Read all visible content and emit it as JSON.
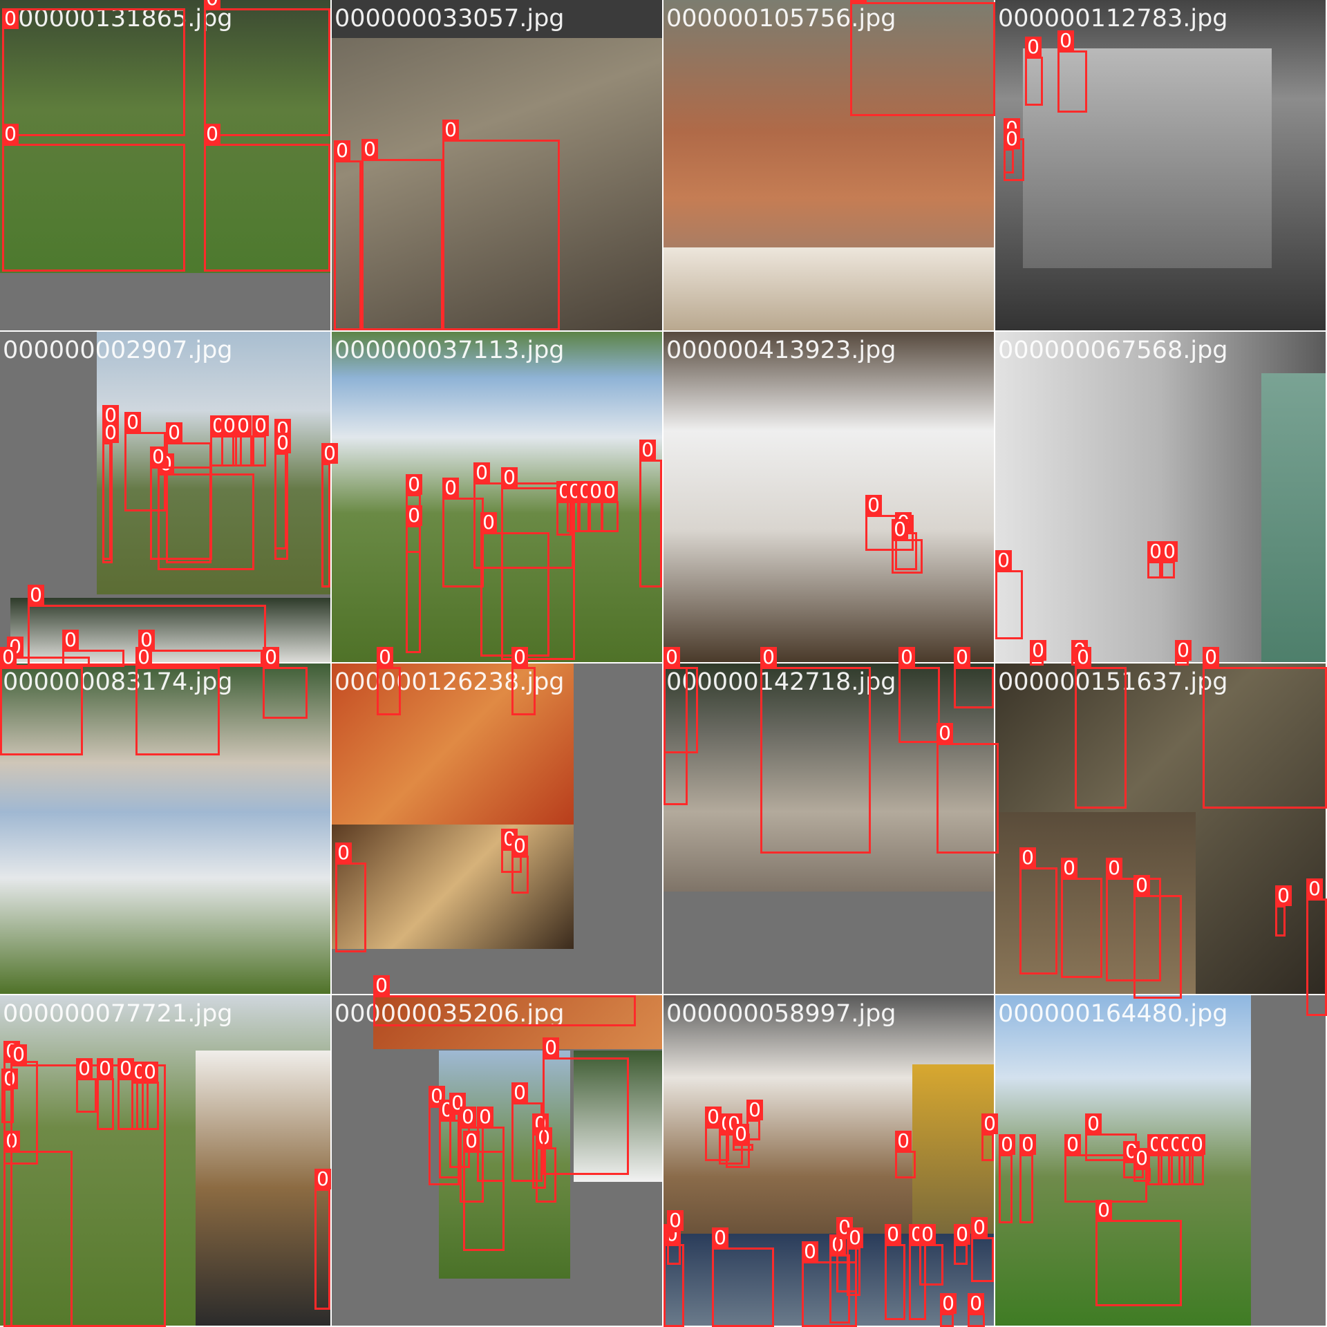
{
  "title": "",
  "label_color": "#ff2a2a",
  "tiles": [
    {
      "filename": "000000131865.jpg"
    },
    {
      "filename": "000000033057.jpg"
    },
    {
      "filename": "000000105756.jpg"
    },
    {
      "filename": "000000112783.jpg"
    },
    {
      "filename": "000000002907.jpg"
    },
    {
      "filename": "000000037113.jpg"
    },
    {
      "filename": "000000413923.jpg"
    },
    {
      "filename": "000000067568.jpg"
    },
    {
      "filename": "000000083174.jpg"
    },
    {
      "filename": "000000126238.jpg"
    },
    {
      "filename": "000000142718.jpg"
    },
    {
      "filename": "000000151637.jpg"
    },
    {
      "filename": "000000077721.jpg"
    },
    {
      "filename": "000000035206.jpg"
    },
    {
      "filename": "000000058997.jpg"
    },
    {
      "filename": "000000164480.jpg"
    }
  ],
  "box_label": "0"
}
